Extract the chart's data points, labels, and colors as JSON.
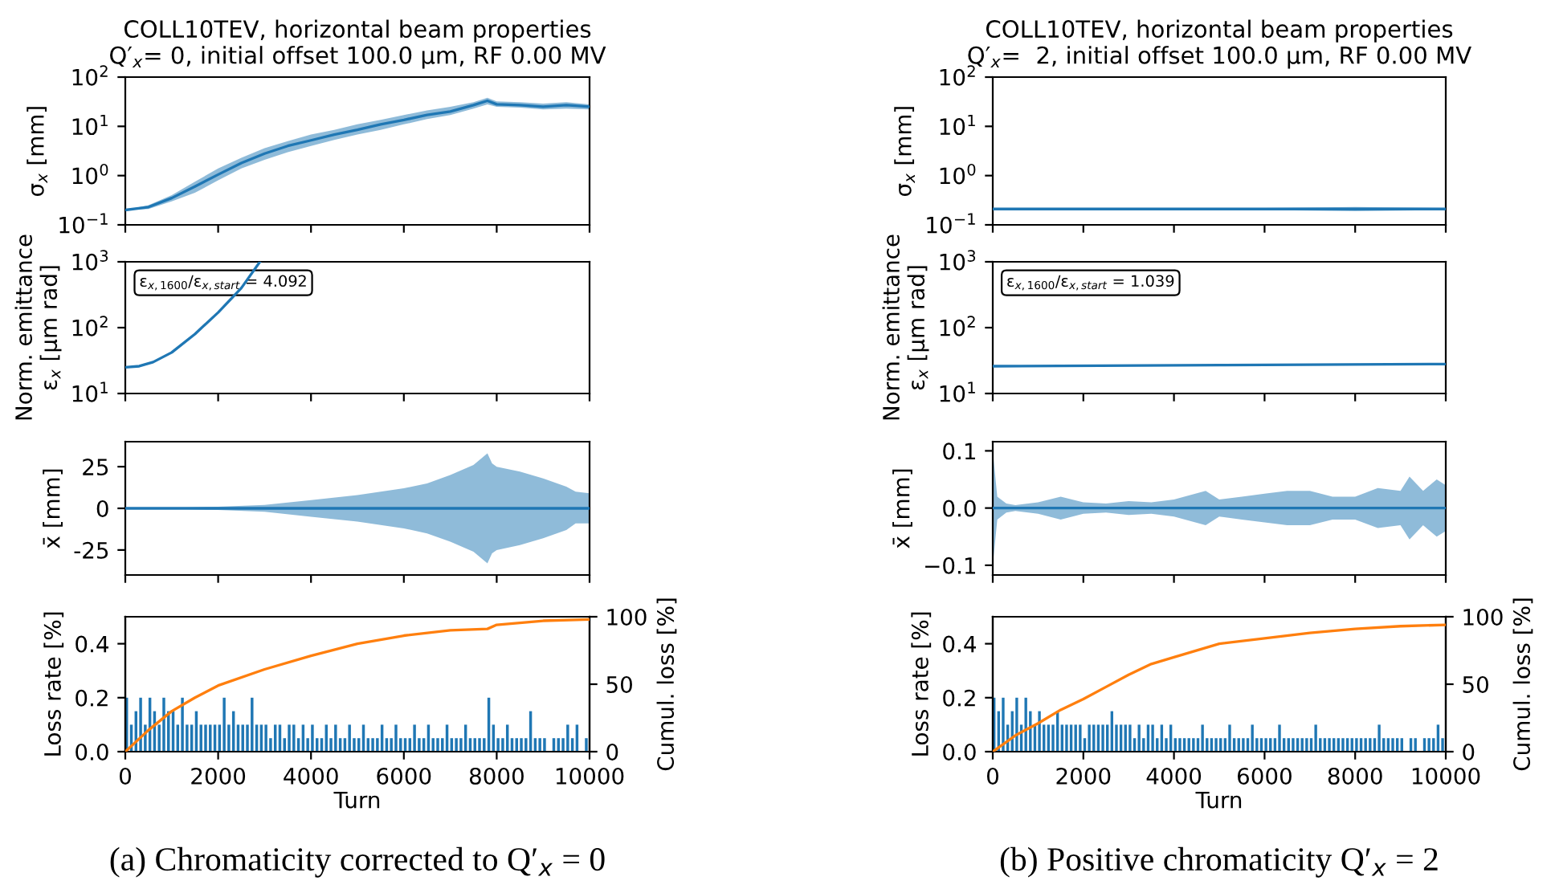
{
  "chart_data": [
    {
      "type": "line",
      "title": "COLL10TEV, horizontal beam properties\nQ′$_{x}$= 0, initial offset 100.0 μm, RF 0.00 MV",
      "ylabel": "σ$_{x}$ [mm]",
      "log": "y",
      "xlim": [
        0,
        10000
      ],
      "xticks": [
        0,
        2000,
        4000,
        6000,
        8000,
        10000
      ],
      "ylim": [
        0.1,
        100
      ],
      "yticks": [
        {
          "value": 0.1,
          "label": "10$^{−1}$"
        },
        {
          "value": 1,
          "label": "10$^{0}$"
        },
        {
          "value": 10,
          "label": "10$^{1}$"
        },
        {
          "value": 100,
          "label": "10$^{2}$"
        }
      ],
      "tick_labels": "y",
      "series": [
        {
          "color": "#1f77b4",
          "x": [
            0,
            500,
            1000,
            1500,
            2000,
            2500,
            3000,
            3500,
            4000,
            4500,
            5000,
            5500,
            6000,
            6500,
            7000,
            7500,
            7800,
            8000,
            8500,
            9000,
            9500,
            10000
          ],
          "values": [
            0.2,
            0.23,
            0.35,
            0.6,
            1.05,
            1.8,
            2.8,
            4,
            5.2,
            6.8,
            8.5,
            11,
            13.5,
            17,
            20,
            27,
            33,
            28,
            27,
            25,
            27,
            25
          ],
          "lower": [
            0.2,
            0.21,
            0.3,
            0.45,
            0.8,
            1.4,
            2.1,
            3,
            4,
            5.3,
            6.8,
            8.5,
            11,
            14,
            17,
            23,
            28,
            25,
            24,
            22,
            23,
            22
          ],
          "upper": [
            0.2,
            0.25,
            0.4,
            0.75,
            1.4,
            2.3,
            3.6,
            5,
            6.8,
            8.5,
            11,
            13.5,
            17,
            21,
            25,
            31,
            38,
            32,
            31,
            29,
            31,
            28
          ]
        }
      ]
    },
    {
      "type": "line",
      "ylabel": "Norm. emittance\nε$_{x}$ [μm rad]",
      "log": "y",
      "xlim": [
        0,
        10000
      ],
      "xticks": [
        0,
        2000,
        4000,
        6000,
        8000,
        10000
      ],
      "ylim": [
        10,
        1000
      ],
      "yticks": [
        {
          "value": 10,
          "label": "10$^{1}$"
        },
        {
          "value": 100,
          "label": "10$^{2}$"
        },
        {
          "value": 1000,
          "label": "10$^{3}$"
        }
      ],
      "tick_labels": "y",
      "annotations": [
        "ε$_{x,1600}$/ε$_{x,start}$ = 4.092"
      ],
      "series": [
        {
          "color": "#1f77b4",
          "x": [
            0,
            300,
            600,
            1000,
            1500,
            2000,
            2500,
            2900
          ],
          "values": [
            25,
            26,
            30,
            42,
            80,
            170,
            400,
            1000
          ]
        }
      ]
    },
    {
      "type": "line",
      "ylabel": "x̄ [mm]",
      "xlim": [
        0,
        10000
      ],
      "xticks": [
        0,
        2000,
        4000,
        6000,
        8000,
        10000
      ],
      "ylim": [
        -40,
        40
      ],
      "yticks": [
        -25,
        0,
        25
      ],
      "tick_labels": "y",
      "series": [
        {
          "color": "#1f77b4",
          "x": [
            0,
            1000,
            2000,
            3000,
            4000,
            5000,
            6000,
            6500,
            7000,
            7500,
            7800,
            7900,
            8000,
            8500,
            9000,
            9500,
            9700,
            10000
          ],
          "values": [
            0,
            0,
            0,
            0,
            0,
            0,
            0,
            0,
            0,
            0,
            0,
            0,
            0,
            0,
            0,
            0,
            0,
            0
          ],
          "lower": [
            0,
            -0.3,
            -1,
            -2,
            -5,
            -8,
            -12,
            -15,
            -20,
            -26,
            -33,
            -27,
            -25,
            -22,
            -18,
            -13,
            -9,
            -9
          ],
          "upper": [
            0,
            0.3,
            1,
            2,
            5,
            8,
            12,
            15,
            20,
            26,
            33,
            27,
            25,
            22,
            18,
            13,
            10,
            9
          ]
        }
      ]
    },
    {
      "type": "bar",
      "xlabel": "Turn",
      "ylabel": "Loss rate [%]",
      "y2label": "Cumul. loss [%]",
      "xlim": [
        0,
        10000
      ],
      "xticks": [
        0,
        2000,
        4000,
        6000,
        8000,
        10000
      ],
      "ylim": [
        0,
        0.5
      ],
      "yticks": [
        {
          "value": 0,
          "label": "0.0"
        },
        {
          "value": 0.2,
          "label": "0.2"
        },
        {
          "value": 0.4,
          "label": "0.4"
        }
      ],
      "y2lim": [
        0,
        100
      ],
      "y2ticks": [
        0,
        50,
        100
      ],
      "annotations": [
        "(a) Chromaticity corrected to Q′$_{x}$ = 0"
      ],
      "series": [
        {
          "color": "#1f77b4",
          "x": [
            0,
            100,
            200,
            300,
            400,
            500,
            600,
            700,
            800,
            900,
            1000,
            1100,
            1200,
            1300,
            1400,
            1500,
            1600,
            1700,
            1800,
            1900,
            2000,
            2100,
            2200,
            2300,
            2400,
            2500,
            2600,
            2700,
            2800,
            2900,
            3000,
            3100,
            3200,
            3300,
            3400,
            3500,
            3600,
            3700,
            3800,
            3900,
            4000,
            4100,
            4200,
            4300,
            4400,
            4500,
            4600,
            4700,
            4800,
            4900,
            5000,
            5100,
            5200,
            5300,
            5400,
            5500,
            5600,
            5700,
            5800,
            5900,
            6000,
            6100,
            6200,
            6300,
            6400,
            6500,
            6600,
            6700,
            6800,
            6900,
            7000,
            7100,
            7200,
            7300,
            7400,
            7500,
            7600,
            7700,
            7800,
            7900,
            8000,
            8100,
            8200,
            8300,
            8400,
            8500,
            8600,
            8700,
            8800,
            8900,
            9000,
            9100,
            9200,
            9300,
            9400,
            9500,
            9600,
            9700,
            9800,
            9900
          ],
          "values": [
            0.2,
            0.1,
            0.15,
            0.2,
            0.1,
            0.2,
            0.15,
            0.1,
            0.2,
            0.15,
            0.15,
            0.1,
            0.2,
            0.1,
            0.1,
            0.15,
            0.1,
            0.1,
            0.1,
            0.1,
            0.1,
            0.2,
            0.1,
            0.15,
            0.1,
            0.1,
            0.1,
            0.2,
            0.1,
            0.1,
            0.1,
            0.05,
            0.1,
            0.1,
            0.05,
            0.1,
            0.1,
            0.05,
            0.1,
            0.05,
            0.1,
            0.05,
            0.05,
            0.1,
            0.05,
            0.1,
            0.05,
            0.05,
            0.1,
            0.05,
            0.05,
            0.1,
            0.05,
            0.05,
            0.05,
            0.1,
            0.05,
            0.05,
            0.1,
            0.05,
            0.05,
            0.05,
            0.1,
            0.05,
            0.05,
            0.1,
            0.05,
            0.05,
            0.05,
            0.1,
            0.05,
            0.05,
            0.05,
            0.1,
            0.05,
            0.05,
            0.05,
            0.05,
            0.2,
            0.1,
            0.05,
            0.05,
            0.1,
            0.05,
            0.05,
            0.05,
            0.05,
            0.15,
            0.05,
            0.05,
            0.05,
            0,
            0.05,
            0.05,
            0.05,
            0.1,
            0.05,
            0.1,
            0,
            0.05
          ]
        },
        {
          "type": "line",
          "axis": "y2",
          "color": "#ff7f0e",
          "x": [
            0,
            500,
            1000,
            1500,
            2000,
            3000,
            4000,
            5000,
            6000,
            7000,
            7800,
            8000,
            9000,
            10000
          ],
          "values": [
            0,
            16,
            30,
            40,
            49,
            61,
            71,
            80,
            86,
            90,
            91,
            94,
            97,
            98
          ]
        }
      ]
    },
    {
      "type": "line",
      "title": "COLL10TEV, horizontal beam properties\nQ′$_{x}$=  2, initial offset 100.0 μm, RF 0.00 MV",
      "ylabel": "σ$_{x}$ [mm]",
      "log": "y",
      "xlim": [
        0,
        10000
      ],
      "xticks": [
        0,
        2000,
        4000,
        6000,
        8000,
        10000
      ],
      "ylim": [
        0.1,
        100
      ],
      "yticks": [
        {
          "value": 0.1,
          "label": "10$^{−1}$"
        },
        {
          "value": 1,
          "label": "10$^{0}$"
        },
        {
          "value": 10,
          "label": "10$^{1}$"
        },
        {
          "value": 100,
          "label": "10$^{2}$"
        }
      ],
      "tick_labels": "y",
      "series": [
        {
          "color": "#1f77b4",
          "x": [
            0,
            2000,
            4000,
            6000,
            8000,
            10000
          ],
          "values": [
            0.21,
            0.21,
            0.21,
            0.21,
            0.21,
            0.21
          ],
          "lower": [
            0.2,
            0.2,
            0.2,
            0.2,
            0.19,
            0.2
          ],
          "upper": [
            0.22,
            0.22,
            0.22,
            0.22,
            0.23,
            0.22
          ]
        }
      ]
    },
    {
      "type": "line",
      "ylabel": "Norm. emittance\nε$_{x}$ [μm rad]",
      "log": "y",
      "xlim": [
        0,
        10000
      ],
      "xticks": [
        0,
        2000,
        4000,
        6000,
        8000,
        10000
      ],
      "ylim": [
        10,
        1000
      ],
      "yticks": [
        {
          "value": 10,
          "label": "10$^{1}$"
        },
        {
          "value": 100,
          "label": "10$^{2}$"
        },
        {
          "value": 1000,
          "label": "10$^{3}$"
        }
      ],
      "tick_labels": "y",
      "annotations": [
        "ε$_{x,1600}$/ε$_{x,start}$ = 1.039"
      ],
      "series": [
        {
          "color": "#1f77b4",
          "x": [
            0,
            5000,
            10000
          ],
          "values": [
            26,
            27,
            28
          ]
        }
      ]
    },
    {
      "type": "line",
      "ylabel": "x̄ [mm]",
      "xlim": [
        0,
        10000
      ],
      "xticks": [
        0,
        2000,
        4000,
        6000,
        8000,
        10000
      ],
      "ylim": [
        -0.117,
        0.116
      ],
      "yticks": [
        {
          "value": -0.1,
          "label": "−0.1"
        },
        {
          "value": 0,
          "label": "0.0"
        },
        {
          "value": 0.1,
          "label": "0.1"
        }
      ],
      "tick_labels": "y",
      "series": [
        {
          "color": "#1f77b4",
          "x": [
            0,
            100,
            300,
            500,
            1000,
            1500,
            2000,
            2500,
            3000,
            3500,
            4000,
            4700,
            5000,
            5500,
            6000,
            6500,
            7000,
            7500,
            8000,
            8500,
            9000,
            9200,
            9500,
            9800,
            10000
          ],
          "values": [
            0,
            0,
            0,
            0,
            0,
            0,
            0,
            0,
            0,
            0,
            0,
            0,
            0,
            0,
            0,
            0,
            0,
            0,
            0,
            0,
            0,
            0,
            0,
            0,
            0
          ],
          "lower": [
            -0.1,
            -0.02,
            -0.008,
            -0.005,
            -0.01,
            -0.02,
            -0.01,
            -0.008,
            -0.012,
            -0.01,
            -0.015,
            -0.03,
            -0.015,
            -0.02,
            -0.025,
            -0.03,
            -0.03,
            -0.02,
            -0.02,
            -0.035,
            -0.03,
            -0.055,
            -0.03,
            -0.05,
            -0.04
          ],
          "upper": [
            0.1,
            0.02,
            0.008,
            0.005,
            0.01,
            0.02,
            0.01,
            0.008,
            0.012,
            0.01,
            0.015,
            0.03,
            0.015,
            0.02,
            0.025,
            0.03,
            0.03,
            0.02,
            0.02,
            0.035,
            0.03,
            0.055,
            0.03,
            0.05,
            0.04
          ]
        }
      ]
    },
    {
      "type": "bar",
      "xlabel": "Turn",
      "ylabel": "Loss rate [%]",
      "y2label": "Cumul. loss [%]",
      "xlim": [
        0,
        10000
      ],
      "xticks": [
        0,
        2000,
        4000,
        6000,
        8000,
        10000
      ],
      "ylim": [
        0,
        0.5
      ],
      "yticks": [
        {
          "value": 0,
          "label": "0.0"
        },
        {
          "value": 0.2,
          "label": "0.2"
        },
        {
          "value": 0.4,
          "label": "0.4"
        }
      ],
      "y2lim": [
        0,
        100
      ],
      "y2ticks": [
        0,
        50,
        100
      ],
      "annotations": [
        "(b) Positive chromaticity Q′$_{x}$ = 2"
      ],
      "series": [
        {
          "color": "#1f77b4",
          "x": [
            0,
            100,
            200,
            300,
            400,
            500,
            600,
            700,
            800,
            900,
            1000,
            1100,
            1200,
            1300,
            1400,
            1500,
            1600,
            1700,
            1800,
            1900,
            2000,
            2100,
            2200,
            2300,
            2400,
            2500,
            2600,
            2700,
            2800,
            2900,
            3000,
            3100,
            3200,
            3300,
            3400,
            3500,
            3600,
            3700,
            3800,
            3900,
            4000,
            4100,
            4200,
            4300,
            4400,
            4500,
            4600,
            4700,
            4800,
            4900,
            5000,
            5100,
            5200,
            5300,
            5400,
            5500,
            5600,
            5700,
            5800,
            5900,
            6000,
            6100,
            6200,
            6300,
            6400,
            6500,
            6600,
            6700,
            6800,
            6900,
            7000,
            7100,
            7200,
            7300,
            7400,
            7500,
            7600,
            7700,
            7800,
            7900,
            8000,
            8100,
            8200,
            8300,
            8400,
            8500,
            8600,
            8700,
            8800,
            8900,
            9000,
            9100,
            9200,
            9300,
            9400,
            9500,
            9600,
            9700,
            9800,
            9900
          ],
          "values": [
            0.2,
            0.15,
            0.2,
            0.1,
            0.15,
            0.2,
            0.1,
            0.2,
            0.15,
            0.1,
            0.15,
            0.1,
            0.1,
            0.1,
            0.15,
            0.1,
            0.1,
            0.1,
            0.1,
            0.1,
            0.05,
            0.1,
            0.1,
            0.1,
            0.1,
            0.1,
            0.15,
            0.1,
            0.1,
            0.1,
            0.1,
            0.05,
            0.1,
            0.05,
            0.1,
            0.1,
            0.05,
            0.1,
            0.05,
            0.1,
            0.05,
            0.05,
            0.05,
            0.05,
            0.05,
            0.05,
            0.1,
            0.05,
            0.05,
            0.05,
            0.05,
            0.05,
            0.1,
            0.05,
            0.05,
            0.05,
            0.05,
            0.1,
            0.05,
            0.05,
            0.05,
            0.05,
            0.05,
            0.1,
            0.05,
            0.05,
            0.05,
            0.05,
            0.05,
            0.05,
            0.05,
            0.1,
            0.05,
            0.05,
            0.05,
            0.05,
            0.05,
            0.05,
            0.05,
            0.05,
            0.05,
            0.05,
            0.05,
            0.05,
            0.05,
            0.1,
            0.05,
            0.05,
            0.05,
            0.05,
            0.05,
            0,
            0.05,
            0.05,
            0,
            0.05,
            0.05,
            0.05,
            0.1,
            0.05
          ]
        },
        {
          "type": "line",
          "axis": "y2",
          "color": "#ff7f0e",
          "x": [
            0,
            500,
            1000,
            1500,
            2000,
            2500,
            3000,
            3500,
            4000,
            5000,
            6000,
            7000,
            8000,
            9000,
            10000
          ],
          "values": [
            0,
            12,
            21,
            31,
            39,
            48,
            57,
            65,
            70,
            80,
            84,
            88,
            91,
            93,
            94
          ]
        }
      ]
    }
  ]
}
